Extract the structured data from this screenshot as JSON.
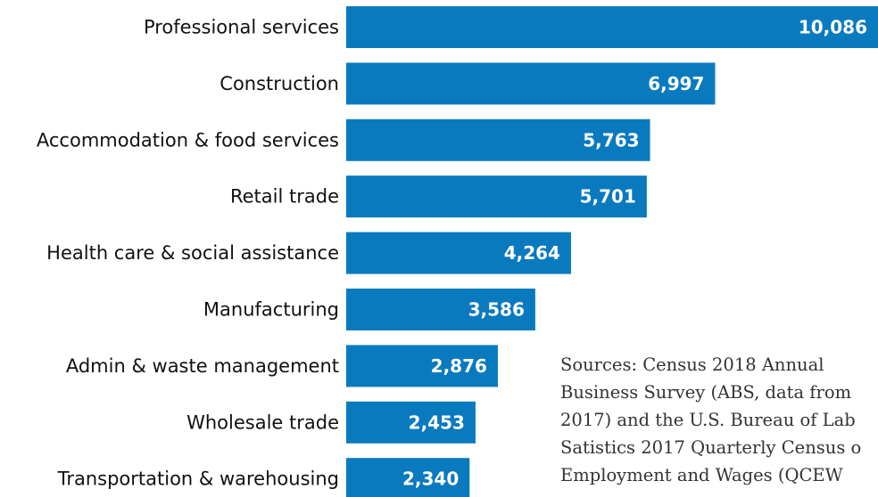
{
  "chart_data": {
    "type": "bar",
    "orientation": "horizontal",
    "categories": [
      "Professional services",
      "Construction",
      "Accommodation & food services",
      "Retail trade",
      "Health care & social assistance",
      "Manufacturing",
      "Admin & waste management",
      "Wholesale trade",
      "Transportation & warehousing"
    ],
    "values": [
      10086,
      6997,
      5763,
      5701,
      4264,
      3586,
      2876,
      2453,
      2340
    ],
    "value_labels": [
      "10,086",
      "6,997",
      "5,763",
      "5,701",
      "4,264",
      "3,586",
      "2,876",
      "2,453",
      "2,340"
    ],
    "bar_color": "#0a7abf",
    "grid": false,
    "legend": "none"
  },
  "source_note": {
    "lines": [
      "Sources: Census 2018 Annual",
      "Business Survey (ABS, data from",
      "2017) and the U.S. Bureau of Lab",
      "Satistics 2017 Quarterly Census o",
      "Employment and Wages (QCEW"
    ]
  }
}
